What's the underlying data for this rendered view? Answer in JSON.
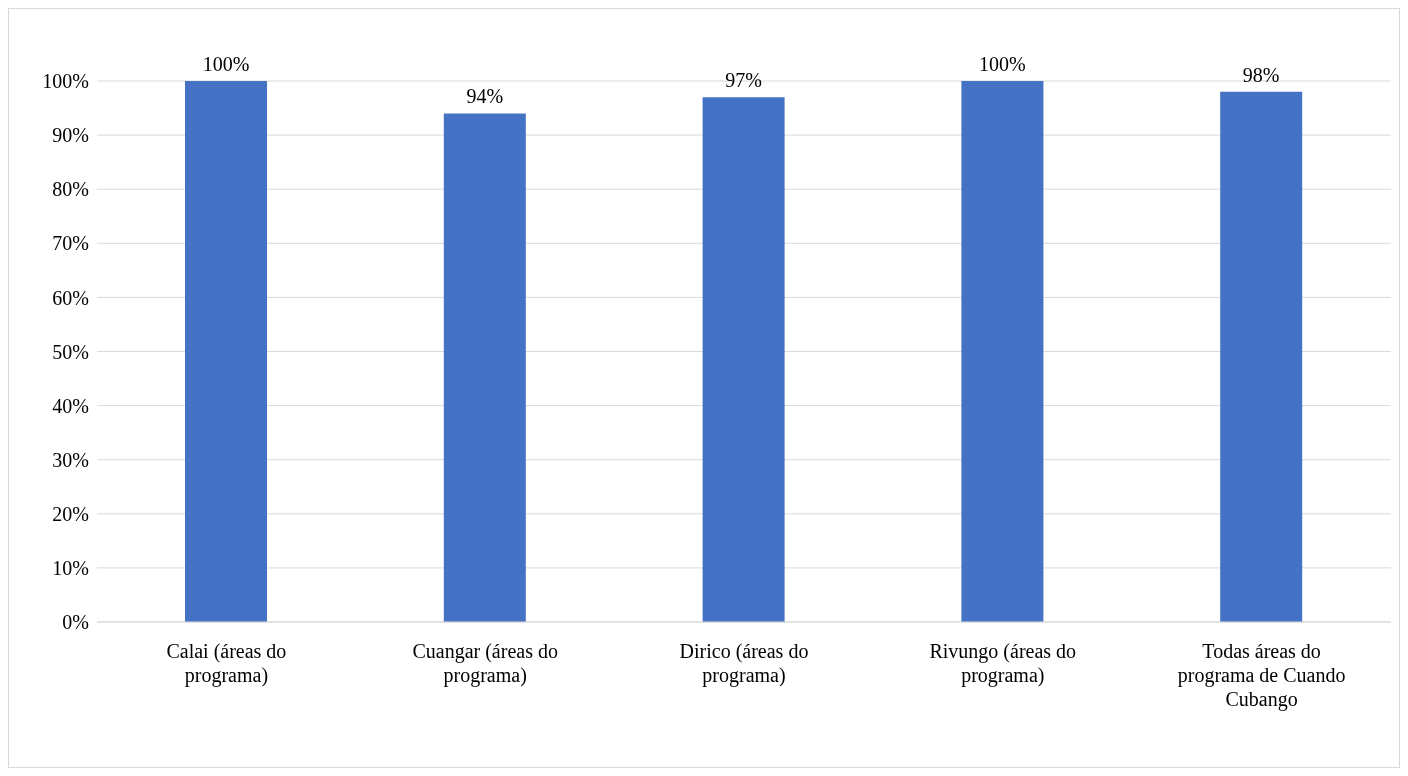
{
  "chart_data": {
    "type": "bar",
    "categories": [
      "Calai (áreas do programa)",
      "Cuangar (áreas do programa)",
      "Dirico (áreas do programa)",
      "Rivungo (áreas do programa)",
      "Todas áreas do programa de Cuando Cubango"
    ],
    "values": [
      100,
      94,
      97,
      100,
      98
    ],
    "value_labels": [
      "100%",
      "94%",
      "97%",
      "100%",
      "98%"
    ],
    "color": "#4472c4",
    "ylim": [
      0,
      100
    ],
    "yticks": [
      {
        "value": 0,
        "label": "0%"
      },
      {
        "value": 10,
        "label": "10%"
      },
      {
        "value": 20,
        "label": "20%"
      },
      {
        "value": 30,
        "label": "30%"
      },
      {
        "value": 40,
        "label": "40%"
      },
      {
        "value": 50,
        "label": "50%"
      },
      {
        "value": 60,
        "label": "60%"
      },
      {
        "value": 70,
        "label": "70%"
      },
      {
        "value": 80,
        "label": "80%"
      },
      {
        "value": 90,
        "label": "90%"
      },
      {
        "value": 100,
        "label": "100%"
      }
    ],
    "grid": "y",
    "legend": false
  }
}
